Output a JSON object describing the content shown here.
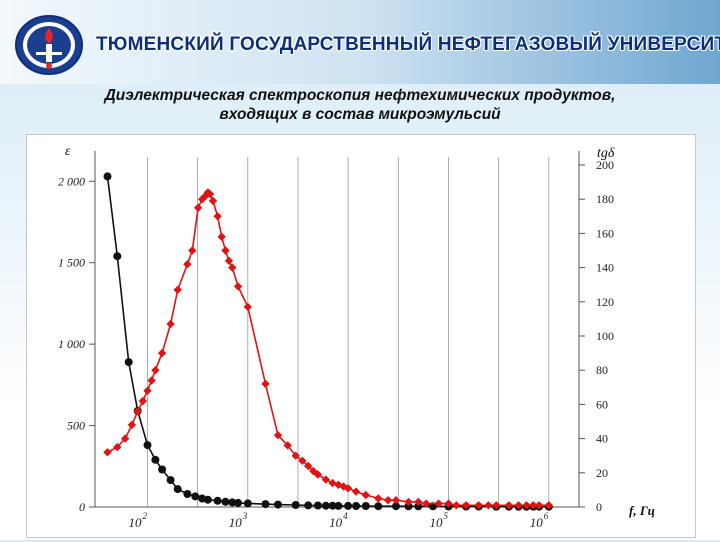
{
  "header": {
    "university": "ТЮМЕНСКИЙ ГОСУДАРСТВЕННЫЙ НЕФТЕГАЗОВЫЙ УНИВЕРСИТЕТ",
    "title_line1": "Диэлектрическая спектроскопия нефтехимических продуктов,",
    "title_line2": "входящих в состав микроэмульсий",
    "logo_icon": "university-emblem-icon"
  },
  "colors": {
    "epsilon_series": "#111111",
    "tgd_series": "#e01414",
    "grid": "#999999",
    "university_text": "#0d2f7a"
  },
  "chart_data": {
    "type": "line",
    "xscale": "log",
    "xlim": [
      30,
      2000000
    ],
    "xlabel": "f, Гц",
    "x_ticks": [
      {
        "value": 100,
        "base": "10",
        "exp": "2"
      },
      {
        "value": 1000,
        "base": "10",
        "exp": "3"
      },
      {
        "value": 10000,
        "base": "10",
        "exp": "4"
      },
      {
        "value": 100000,
        "base": "10",
        "exp": "5"
      },
      {
        "value": 1000000,
        "base": "10",
        "exp": "6"
      }
    ],
    "y_left": {
      "label": "ε",
      "lim": [
        0,
        2100
      ],
      "ticks": [
        0,
        500,
        1000,
        1500,
        2000
      ],
      "tick_labels": [
        "0",
        "500",
        "1 000",
        "1 500",
        "2 000"
      ]
    },
    "y_right": {
      "label": "tgδ",
      "lim": [
        0,
        200
      ],
      "ticks": [
        0,
        20,
        40,
        60,
        80,
        100,
        120,
        140,
        160,
        180,
        200
      ],
      "tick_labels": [
        "0",
        "20",
        "40",
        "60",
        "80",
        "100",
        "120",
        "140",
        "160",
        "180",
        "200"
      ]
    },
    "grid": true,
    "legend": "none",
    "series": [
      {
        "axis": "left",
        "marker": "circle",
        "color": "#111111",
        "x": [
          40,
          50,
          65,
          80,
          100,
          120,
          140,
          170,
          200,
          250,
          300,
          350,
          400,
          500,
          600,
          700,
          800,
          1000,
          1500,
          2000,
          3000,
          4000,
          5000,
          6000,
          7000,
          8000,
          10000,
          12000,
          15000,
          20000,
          30000,
          40000,
          50000,
          70000,
          100000,
          150000,
          200000,
          300000,
          400000,
          500000,
          600000,
          700000,
          800000,
          1000000
        ],
        "y": [
          2030,
          1540,
          890,
          590,
          380,
          290,
          230,
          165,
          110,
          80,
          65,
          52,
          45,
          38,
          32,
          28,
          25,
          22,
          18,
          15,
          12,
          10,
          9,
          8,
          8,
          7,
          7,
          6,
          6,
          5,
          5,
          4,
          4,
          4,
          3,
          3,
          3,
          2,
          2,
          2,
          2,
          2,
          2,
          2
        ]
      },
      {
        "axis": "right",
        "marker": "diamond",
        "color": "#e01414",
        "x": [
          40,
          50,
          60,
          70,
          80,
          90,
          100,
          110,
          120,
          140,
          170,
          200,
          250,
          280,
          320,
          350,
          380,
          400,
          420,
          450,
          500,
          550,
          600,
          650,
          700,
          800,
          1000,
          1500,
          2000,
          2500,
          3000,
          3500,
          4000,
          4500,
          5000,
          6000,
          7000,
          8000,
          9000,
          10000,
          12000,
          15000,
          20000,
          25000,
          30000,
          40000,
          50000,
          60000,
          80000,
          100000,
          120000,
          150000,
          200000,
          250000,
          300000,
          400000,
          500000,
          600000,
          700000,
          800000,
          1000000
        ],
        "y": [
          32,
          35,
          40,
          48,
          56,
          62,
          68,
          74,
          80,
          90,
          107,
          127,
          142,
          150,
          175,
          180,
          182,
          184,
          183,
          179,
          170,
          158,
          150,
          144,
          140,
          129,
          117,
          72,
          42,
          36,
          30,
          27,
          24,
          21,
          19,
          16,
          14,
          13,
          12,
          11,
          9,
          7,
          5,
          4,
          4,
          3,
          3,
          2,
          2,
          2,
          1,
          1,
          1,
          1,
          1,
          1,
          1,
          1,
          1,
          1,
          1
        ]
      }
    ]
  }
}
